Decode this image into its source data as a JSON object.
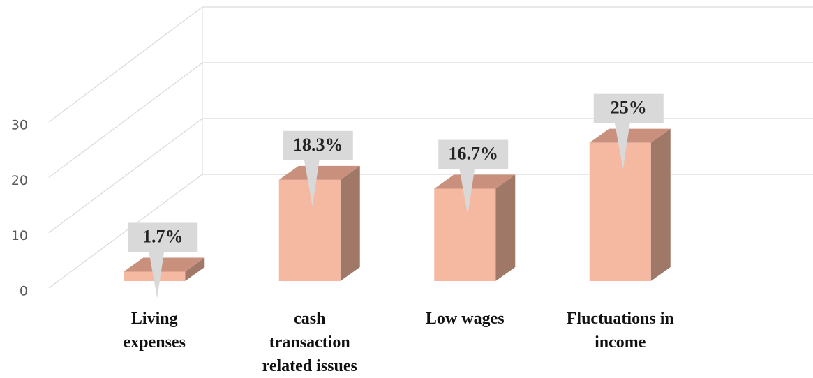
{
  "chart_data": {
    "type": "bar3d",
    "categories": [
      "Living expenses",
      "cash transaction related issues",
      "Low wages",
      "Fluctuations in income"
    ],
    "values": [
      1.7,
      18.3,
      16.7,
      25
    ],
    "value_labels": [
      "1.7%",
      "18.3%",
      "16.7%",
      "25%"
    ],
    "color": "#f5b8a1",
    "ylim": [
      0,
      30
    ],
    "yticks": [
      0,
      10,
      20,
      30
    ],
    "grid": true
  }
}
